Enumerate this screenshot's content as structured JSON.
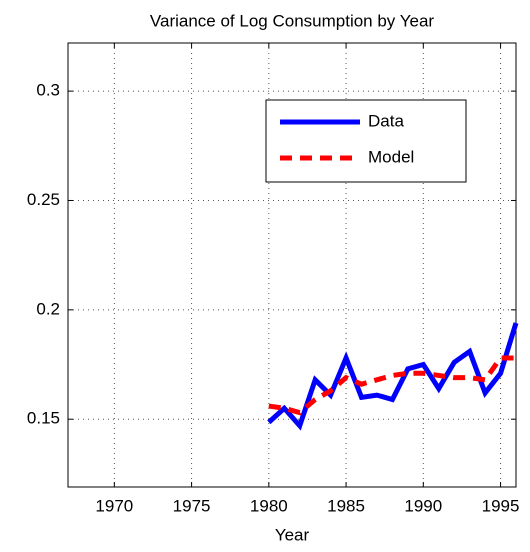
{
  "chart_data": {
    "type": "line",
    "title": "Variance of Log Consumption by Year",
    "x_label": "Year",
    "x": [
      1980,
      1981,
      1982,
      1983,
      1984,
      1985,
      1986,
      1987,
      1988,
      1989,
      1990,
      1991,
      1992,
      1993,
      1994,
      1995,
      1996
    ],
    "series": [
      {
        "name": "Data",
        "color": "#0000ff",
        "dash": "solid",
        "values": [
          0.1486,
          0.155,
          0.147,
          0.168,
          0.161,
          0.178,
          0.16,
          0.161,
          0.159,
          0.173,
          0.175,
          0.164,
          0.176,
          0.181,
          0.162,
          0.171,
          0.194
        ]
      },
      {
        "name": "Model",
        "color": "#ff0000",
        "dash": "dashed",
        "values": [
          0.156,
          0.155,
          0.153,
          0.159,
          0.163,
          0.169,
          0.166,
          0.168,
          0.17,
          0.171,
          0.171,
          0.17,
          0.169,
          0.169,
          0.168,
          0.178,
          0.178
        ]
      }
    ],
    "xlim": [
      1967,
      1996
    ],
    "xticks": [
      1970,
      1975,
      1980,
      1985,
      1990,
      1995
    ],
    "ylim": [
      0.119,
      0.322
    ],
    "yticks": [
      0.15,
      0.2,
      0.25,
      0.3
    ],
    "grid": true,
    "legend_position": "upper-right"
  }
}
